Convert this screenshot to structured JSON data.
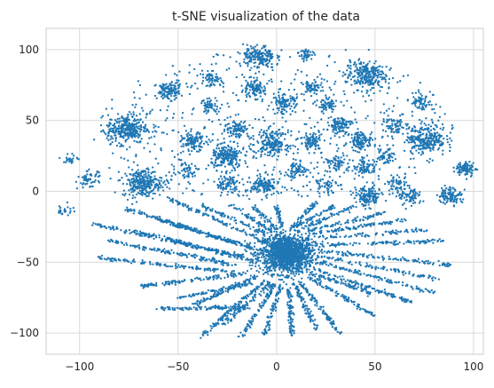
{
  "chart_data": {
    "type": "scatter",
    "title": "t-SNE visualization of the data",
    "xlabel": "",
    "ylabel": "",
    "xlim": [
      -117,
      105
    ],
    "ylim": [
      -115,
      115
    ],
    "xticks": [
      -100,
      -50,
      0,
      50,
      100
    ],
    "yticks": [
      -100,
      -50,
      0,
      50,
      100
    ],
    "xtick_labels": [
      "−100",
      "−50",
      "0",
      "50",
      "100"
    ],
    "ytick_labels": [
      "−100",
      "−50",
      "0",
      "50",
      "100"
    ],
    "grid": true,
    "legend": "none",
    "point_color": "#1f77b4",
    "grid_color": "#d9d9d9",
    "spine_color": "#cccccc",
    "clusters": [
      {
        "x": 5,
        "y": -44,
        "spread": 7,
        "n": 1500
      },
      {
        "x": -76,
        "y": 44,
        "spread": 5,
        "n": 300
      },
      {
        "x": -68,
        "y": 6,
        "spread": 5,
        "n": 280
      },
      {
        "x": 45,
        "y": 82,
        "spread": 5,
        "n": 240
      },
      {
        "x": 76,
        "y": 37,
        "spread": 5,
        "n": 260
      },
      {
        "x": -9,
        "y": 95,
        "spread": 4,
        "n": 180
      },
      {
        "x": -25,
        "y": 24,
        "spread": 4,
        "n": 200
      },
      {
        "x": -2,
        "y": 34,
        "spread": 4,
        "n": 180
      },
      {
        "x": 46,
        "y": -4,
        "spread": 3.5,
        "n": 150
      },
      {
        "x": -6,
        "y": 4,
        "spread": 3.5,
        "n": 140
      },
      {
        "x": -55,
        "y": 71,
        "spread": 3,
        "n": 110
      },
      {
        "x": -42,
        "y": 35,
        "spread": 3,
        "n": 110
      },
      {
        "x": 43,
        "y": 36,
        "spread": 3,
        "n": 110
      },
      {
        "x": 88,
        "y": -3,
        "spread": 3,
        "n": 110
      },
      {
        "x": 96,
        "y": 16,
        "spread": 2.5,
        "n": 90
      },
      {
        "x": 32,
        "y": 47,
        "spread": 3,
        "n": 100
      },
      {
        "x": -12,
        "y": 72,
        "spread": 3,
        "n": 100
      },
      {
        "x": 4,
        "y": 62,
        "spread": 3,
        "n": 100
      },
      {
        "x": 18,
        "y": 35,
        "spread": 3,
        "n": 90
      },
      {
        "x": -20,
        "y": 44,
        "spread": 3,
        "n": 90
      },
      {
        "x": 45,
        "y": 17,
        "spread": 3,
        "n": 80
      },
      {
        "x": 68,
        "y": -4,
        "spread": 3,
        "n": 80
      },
      {
        "x": -25,
        "y": 5,
        "spread": 3,
        "n": 80
      },
      {
        "x": -95,
        "y": 8,
        "spread": 3,
        "n": 60
      },
      {
        "x": 73,
        "y": 63,
        "spread": 2.5,
        "n": 60
      },
      {
        "x": 26,
        "y": 60,
        "spread": 2.5,
        "n": 60
      },
      {
        "x": 18,
        "y": 73,
        "spread": 2.5,
        "n": 60
      },
      {
        "x": -33,
        "y": 79,
        "spread": 2.5,
        "n": 50
      },
      {
        "x": -34,
        "y": 60,
        "spread": 2.5,
        "n": 50
      },
      {
        "x": 15,
        "y": 97,
        "spread": 2,
        "n": 40
      },
      {
        "x": -104,
        "y": 23,
        "spread": 2,
        "n": 25
      },
      {
        "x": -107,
        "y": -13,
        "spread": 2,
        "n": 25
      },
      {
        "x": 61,
        "y": 5,
        "spread": 3,
        "n": 60
      },
      {
        "x": 60,
        "y": 46,
        "spread": 3,
        "n": 60
      },
      {
        "x": 10,
        "y": 15,
        "spread": 3,
        "n": 60
      },
      {
        "x": 30,
        "y": 20,
        "spread": 3,
        "n": 60
      },
      {
        "x": -45,
        "y": 15,
        "spread": 3,
        "n": 50
      },
      {
        "x": 25,
        "y": 5,
        "spread": 3,
        "n": 50
      },
      {
        "x": 55,
        "y": 25,
        "spread": 3,
        "n": 50
      }
    ],
    "streaks": [
      {
        "x1": -93,
        "y1": -23,
        "x2": -17,
        "y2": -46,
        "n": 160
      },
      {
        "x1": -85,
        "y1": -35,
        "x2": -20,
        "y2": -52,
        "n": 140
      },
      {
        "x1": -90,
        "y1": -47,
        "x2": -22,
        "y2": -57,
        "n": 130
      },
      {
        "x1": -70,
        "y1": -29,
        "x2": -12,
        "y2": -49,
        "n": 110
      },
      {
        "x1": -77,
        "y1": -12,
        "x2": -12,
        "y2": -40,
        "n": 150
      },
      {
        "x1": -60,
        "y1": -20,
        "x2": -8,
        "y2": -42,
        "n": 110
      },
      {
        "x1": -55,
        "y1": -5,
        "x2": -5,
        "y2": -36,
        "n": 110
      },
      {
        "x1": -62,
        "y1": -83,
        "x2": -14,
        "y2": -82,
        "n": 110
      },
      {
        "x1": -70,
        "y1": -67,
        "x2": -15,
        "y2": -58,
        "n": 120
      },
      {
        "x1": -42,
        "y1": -80,
        "x2": -10,
        "y2": -60,
        "n": 90
      },
      {
        "x1": -50,
        "y1": -75,
        "x2": -13,
        "y2": -65,
        "n": 80
      },
      {
        "x1": -38,
        "y1": -102,
        "x2": -6,
        "y2": -63,
        "n": 110
      },
      {
        "x1": -28,
        "y1": -95,
        "x2": -3,
        "y2": -65,
        "n": 80
      },
      {
        "x1": -18,
        "y1": -103,
        "x2": -1,
        "y2": -66,
        "n": 90
      },
      {
        "x1": -6,
        "y1": -101,
        "x2": 2,
        "y2": -67,
        "n": 80
      },
      {
        "x1": 8,
        "y1": -102,
        "x2": 6,
        "y2": -67,
        "n": 80
      },
      {
        "x1": 20,
        "y1": -97,
        "x2": 9,
        "y2": -65,
        "n": 80
      },
      {
        "x1": 32,
        "y1": -100,
        "x2": 12,
        "y2": -64,
        "n": 100
      },
      {
        "x1": 50,
        "y1": -88,
        "x2": 16,
        "y2": -60,
        "n": 100
      },
      {
        "x1": 48,
        "y1": -72,
        "x2": 18,
        "y2": -58,
        "n": 80
      },
      {
        "x1": 68,
        "y1": -78,
        "x2": 20,
        "y2": -55,
        "n": 110
      },
      {
        "x1": 80,
        "y1": -72,
        "x2": 22,
        "y2": -50,
        "n": 110
      },
      {
        "x1": 82,
        "y1": -62,
        "x2": 22,
        "y2": -46,
        "n": 90
      },
      {
        "x1": 88,
        "y1": -52,
        "x2": 22,
        "y2": -42,
        "n": 110
      },
      {
        "x1": 85,
        "y1": -35,
        "x2": 22,
        "y2": -38,
        "n": 110
      },
      {
        "x1": 78,
        "y1": -27,
        "x2": 20,
        "y2": -33,
        "n": 80
      },
      {
        "x1": 65,
        "y1": -20,
        "x2": 18,
        "y2": -30,
        "n": 90
      },
      {
        "x1": 55,
        "y1": -15,
        "x2": 16,
        "y2": -28,
        "n": 70
      },
      {
        "x1": 40,
        "y1": -10,
        "x2": 14,
        "y2": -26,
        "n": 60
      },
      {
        "x1": 30,
        "y1": -10,
        "x2": 10,
        "y2": -25,
        "n": 60
      },
      {
        "x1": 20,
        "y1": -8,
        "x2": 8,
        "y2": -25,
        "n": 50
      },
      {
        "x1": -38,
        "y1": -10,
        "x2": -6,
        "y2": -30,
        "n": 70
      },
      {
        "x1": -25,
        "y1": -8,
        "x2": -3,
        "y2": -28,
        "n": 60
      },
      {
        "x1": -12,
        "y1": -10,
        "x2": 0,
        "y2": -27,
        "n": 50
      },
      {
        "x1": 0,
        "y1": -10,
        "x2": 3,
        "y2": -26,
        "n": 40
      }
    ],
    "scatter_fill": {
      "n": 650,
      "xmin": -95,
      "xmax": 95,
      "ymin": -5,
      "ymax": 102,
      "core_x": 0,
      "core_y": 45,
      "core_rx": 90,
      "core_ry": 55
    }
  }
}
